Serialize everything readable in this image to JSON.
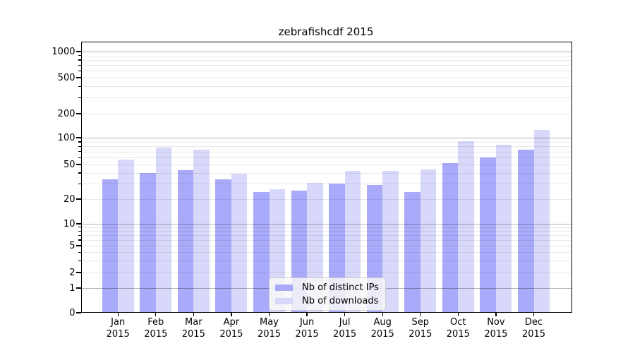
{
  "chart_data": {
    "type": "bar",
    "title": "zebrafishcdf 2015",
    "x_tick_year": "2015",
    "categories": [
      "Jan",
      "Feb",
      "Mar",
      "Apr",
      "May",
      "Jun",
      "Jul",
      "Aug",
      "Sep",
      "Oct",
      "Nov",
      "Dec"
    ],
    "series": [
      {
        "name": "Nb of distinct IPs",
        "color": "#aaaafa",
        "values": [
          34,
          40,
          43,
          34,
          24,
          25,
          30,
          29,
          24,
          52,
          60,
          73
        ]
      },
      {
        "name": "Nb of downloads",
        "color": "#d8d8fa",
        "values": [
          57,
          77,
          73,
          39,
          26,
          31,
          42,
          42,
          44,
          91,
          83,
          125
        ]
      }
    ],
    "yscale": "symlog",
    "yticks": [
      0,
      1,
      2,
      5,
      10,
      20,
      50,
      100,
      200,
      500,
      1000
    ],
    "ylim": [
      0,
      1300
    ],
    "grid": "on",
    "legend_position": "lower center"
  }
}
